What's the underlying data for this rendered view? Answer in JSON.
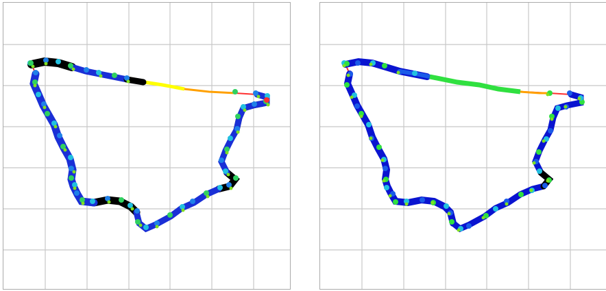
{
  "figure": {
    "background": "#ffffff",
    "grid_color": "#c8c8c8",
    "frame_color": "#aaaaaa",
    "panels": [
      {
        "id": "left",
        "has_grid": true,
        "route_colors": [
          "#000000",
          "#1a2fd6",
          "#1f80e8",
          "#22c0e0",
          "#30d060",
          "#7fe020",
          "#ffff00",
          "#ffa000",
          "#ff3030"
        ]
      },
      {
        "id": "right",
        "has_grid": true,
        "route_colors": [
          "#000000",
          "#0a14d0",
          "#1a5be8",
          "#22c0e0",
          "#30e040",
          "#7fe020",
          "#ffa000",
          "#ff3030"
        ]
      }
    ]
  }
}
